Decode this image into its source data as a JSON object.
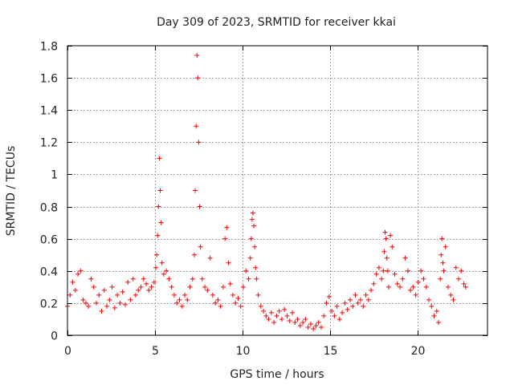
{
  "chart_data": {
    "type": "scatter",
    "title": "Day 309 of 2023, SRMTID for receiver kkai",
    "xlabel": "GPS time / hours",
    "ylabel": "SRMTID / TECUs",
    "xlim": [
      0,
      24
    ],
    "ylim": [
      0,
      1.8
    ],
    "xticks": [
      0,
      5,
      10,
      15,
      20
    ],
    "yticks": [
      0,
      0.2,
      0.4,
      0.6,
      0.8,
      1,
      1.2,
      1.4,
      1.6,
      1.8
    ],
    "xtick_labels": [
      "0",
      "5",
      "10",
      "15",
      "20"
    ],
    "ytick_labels": [
      "0",
      "0.2",
      "0.4",
      "0.6",
      "0.8",
      "1",
      "1.2",
      "1.4",
      "1.6",
      "1.8"
    ],
    "grid": true,
    "marker": "+",
    "color": "#ff0000",
    "series": [
      {
        "name": "SRMTID",
        "x": [
          0.0,
          0.15,
          0.3,
          0.45,
          0.6,
          0.75,
          0.9,
          1.05,
          1.2,
          1.35,
          1.5,
          1.65,
          1.8,
          1.95,
          2.1,
          2.25,
          2.4,
          2.55,
          2.7,
          2.85,
          3.0,
          3.15,
          3.3,
          3.45,
          3.6,
          3.75,
          3.9,
          4.05,
          4.2,
          4.35,
          4.5,
          4.65,
          4.8,
          4.95,
          5.05,
          5.1,
          5.15,
          5.2,
          5.25,
          5.3,
          5.35,
          5.4,
          5.5,
          5.65,
          5.8,
          5.95,
          6.1,
          6.25,
          6.4,
          6.55,
          6.7,
          6.85,
          7.0,
          7.15,
          7.25,
          7.3,
          7.35,
          7.4,
          7.45,
          7.5,
          7.55,
          7.6,
          7.7,
          7.85,
          8.0,
          8.15,
          8.3,
          8.45,
          8.6,
          8.75,
          8.9,
          9.0,
          9.1,
          9.2,
          9.3,
          9.45,
          9.6,
          9.75,
          9.9,
          10.05,
          10.2,
          10.35,
          10.45,
          10.5,
          10.55,
          10.6,
          10.65,
          10.7,
          10.75,
          10.8,
          10.9,
          11.05,
          11.2,
          11.35,
          11.5,
          11.65,
          11.8,
          11.95,
          12.1,
          12.25,
          12.4,
          12.55,
          12.7,
          12.85,
          13.0,
          13.15,
          13.3,
          13.45,
          13.6,
          13.75,
          13.9,
          14.05,
          14.2,
          14.35,
          14.5,
          14.65,
          14.8,
          14.95,
          15.1,
          15.25,
          15.4,
          15.55,
          15.7,
          15.85,
          16.0,
          16.15,
          16.3,
          16.45,
          16.6,
          16.75,
          16.9,
          17.05,
          17.2,
          17.35,
          17.5,
          17.65,
          17.8,
          17.95,
          18.05,
          18.1,
          18.15,
          18.2,
          18.25,
          18.3,
          18.35,
          18.45,
          18.55,
          18.7,
          18.85,
          19.0,
          19.15,
          19.3,
          19.45,
          19.6,
          19.75,
          19.9,
          20.05,
          20.2,
          20.35,
          20.5,
          20.65,
          20.8,
          20.95,
          21.1,
          21.2,
          21.3,
          21.35,
          21.4,
          21.45,
          21.5,
          21.6,
          21.75,
          21.9,
          22.05,
          22.2,
          22.35,
          22.5,
          22.65,
          22.75
        ],
        "y": [
          0.18,
          0.25,
          0.33,
          0.28,
          0.38,
          0.4,
          0.22,
          0.2,
          0.18,
          0.35,
          0.3,
          0.2,
          0.25,
          0.15,
          0.28,
          0.18,
          0.22,
          0.3,
          0.17,
          0.25,
          0.2,
          0.27,
          0.19,
          0.33,
          0.22,
          0.35,
          0.25,
          0.28,
          0.3,
          0.35,
          0.32,
          0.28,
          0.3,
          0.33,
          0.42,
          0.5,
          0.62,
          0.8,
          1.1,
          0.9,
          0.7,
          0.45,
          0.38,
          0.4,
          0.35,
          0.3,
          0.25,
          0.2,
          0.22,
          0.18,
          0.25,
          0.22,
          0.3,
          0.35,
          0.5,
          0.9,
          1.3,
          1.74,
          1.6,
          1.2,
          0.8,
          0.55,
          0.35,
          0.3,
          0.28,
          0.48,
          0.25,
          0.2,
          0.22,
          0.18,
          0.3,
          0.6,
          0.67,
          0.45,
          0.32,
          0.25,
          0.2,
          0.23,
          0.18,
          0.3,
          0.4,
          0.35,
          0.48,
          0.6,
          0.72,
          0.76,
          0.68,
          0.55,
          0.42,
          0.35,
          0.25,
          0.18,
          0.15,
          0.12,
          0.1,
          0.14,
          0.08,
          0.12,
          0.15,
          0.1,
          0.16,
          0.12,
          0.09,
          0.14,
          0.08,
          0.1,
          0.06,
          0.08,
          0.1,
          0.05,
          0.07,
          0.04,
          0.06,
          0.08,
          0.05,
          0.12,
          0.2,
          0.24,
          0.15,
          0.12,
          0.18,
          0.1,
          0.14,
          0.2,
          0.16,
          0.22,
          0.18,
          0.25,
          0.2,
          0.22,
          0.18,
          0.25,
          0.22,
          0.28,
          0.32,
          0.38,
          0.42,
          0.35,
          0.4,
          0.52,
          0.64,
          0.6,
          0.48,
          0.4,
          0.3,
          0.62,
          0.55,
          0.38,
          0.32,
          0.3,
          0.35,
          0.48,
          0.4,
          0.28,
          0.3,
          0.25,
          0.33,
          0.4,
          0.35,
          0.3,
          0.22,
          0.18,
          0.12,
          0.15,
          0.08,
          0.35,
          0.5,
          0.6,
          0.45,
          0.4,
          0.55,
          0.3,
          0.25,
          0.22,
          0.42,
          0.35,
          0.4,
          0.32,
          0.3
        ]
      }
    ]
  }
}
